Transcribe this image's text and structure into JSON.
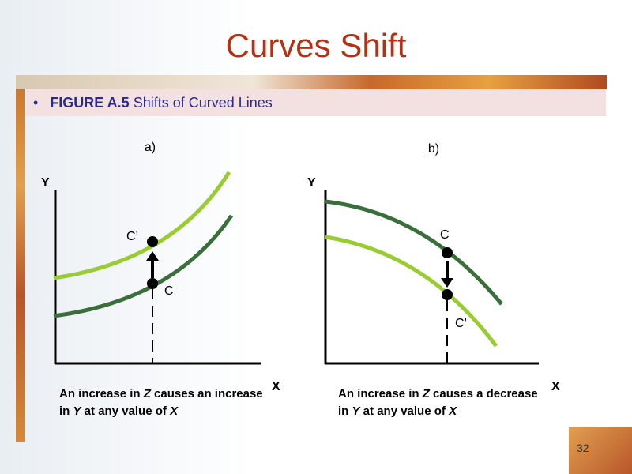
{
  "header": {
    "title": "Curves Shift"
  },
  "figure": {
    "number": "FIGURE A.5",
    "caption": "Shifts of Curved Lines"
  },
  "panels": [
    {
      "label": "a)",
      "y_axis": "Y",
      "x_axis": "X",
      "point": "C",
      "shifted_point": "C’",
      "note": [
        "An increase in ",
        "Z",
        " causes an increase in ",
        "Y",
        " at any value of ",
        "X"
      ]
    },
    {
      "label": "b)",
      "y_axis": "Y",
      "x_axis": "X",
      "point": "C",
      "shifted_point": "C’",
      "note": [
        "An increase in ",
        "Z",
        " causes a decrease in ",
        "Y",
        " at any value of ",
        "X"
      ]
    }
  ],
  "footer": {
    "page": "32"
  }
}
